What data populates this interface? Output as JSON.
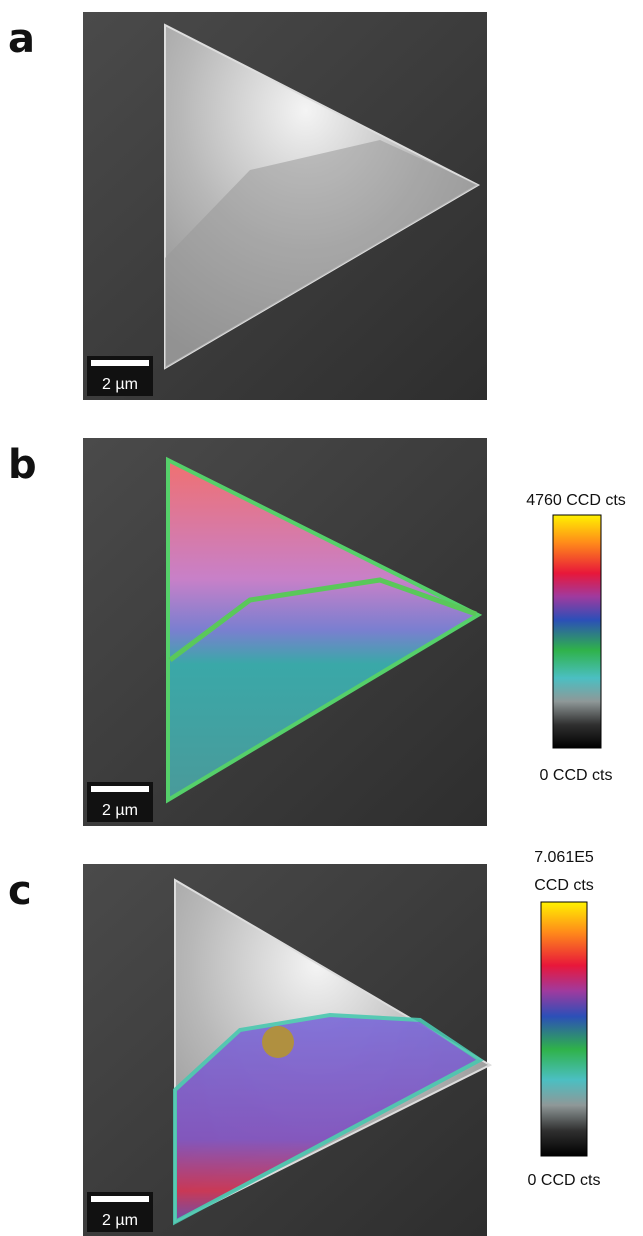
{
  "panels": [
    {
      "label": "a",
      "scale_bar": "2 µm"
    },
    {
      "label": "b",
      "scale_bar": "2 µm",
      "colorbar": {
        "max_label": "4760 CCD cts",
        "min_label": "0 CCD cts"
      }
    },
    {
      "label": "c",
      "scale_bar": "2 µm",
      "colorbar": {
        "max_label": "7.061E5",
        "max_unit": "CCD cts",
        "min_label": "0 CCD cts"
      }
    }
  ]
}
